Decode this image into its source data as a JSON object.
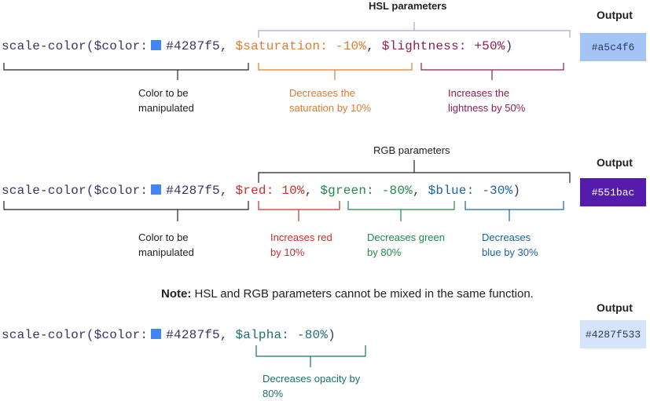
{
  "colors": {
    "code_text": "#3a3268",
    "swatch": "#4287f5",
    "saturation": "#e07b2c",
    "lightness": "#8c1d52",
    "red": "#c8302b",
    "green": "#1e8a4b",
    "blue": "#1a64a8",
    "alpha": "#1e6f74",
    "hsl_bracket": "#a6a6d8",
    "neutral": "#222222",
    "out1": "#a5c4f6",
    "out2": "#551bac",
    "out3": "#d5e4fb"
  },
  "row1": {
    "func": "scale-color(",
    "color_param": "$color:",
    "color_value": "#4287f5",
    "comma1": ",",
    "saturation": "$saturation: -10%",
    "comma2": ",",
    "lightness": "$lightness: +50%",
    "close": ")",
    "header": "HSL parameters",
    "ann_color": "Color to be manipulated",
    "ann_saturation": "Decreases the saturation by 10%",
    "ann_lightness": "Increases the lightness by 50%",
    "output_label": "Output",
    "output_value": "#a5c4f6"
  },
  "row2": {
    "func": "scale-color(",
    "color_param": "$color:",
    "color_value": "#4287f5",
    "comma1": ",",
    "red": "$red: 10%",
    "comma2": ",",
    "green": "$green: -80%",
    "comma3": ",",
    "blue": "$blue: -30%",
    "close": ")",
    "header": "RGB parameters",
    "ann_color": "Color to be manipulated",
    "ann_red": "Increases red by 10%",
    "ann_green": "Decreases green by 80%",
    "ann_blue": "Decreases blue by 30%",
    "output_label": "Output",
    "output_value": "#551bac"
  },
  "note": {
    "label": "Note:",
    "text": " HSL and RGB parameters cannot be mixed in the same function."
  },
  "row3": {
    "func": "scale-color(",
    "color_param": "$color:",
    "color_value": "#4287f5",
    "comma1": ",",
    "alpha": "$alpha: -80%",
    "close": ")",
    "ann_alpha": "Decreases opacity by 80%",
    "output_label": "Output",
    "output_value": "#4287f533"
  }
}
